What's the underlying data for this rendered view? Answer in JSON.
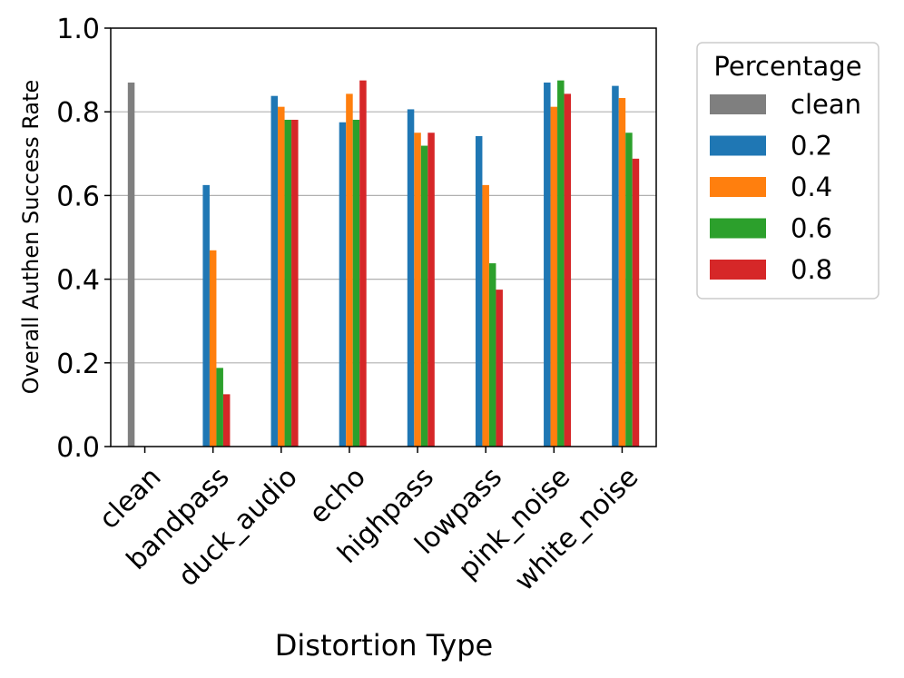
{
  "chart_data": {
    "type": "bar",
    "title": "",
    "xlabel": "Distortion Type",
    "ylabel": "Overall Authen Success Rate",
    "ylim": [
      0,
      1.0
    ],
    "yticks": [
      "0.0",
      "0.2",
      "0.4",
      "0.6",
      "0.8",
      "1.0"
    ],
    "ytick_values": [
      0.0,
      0.2,
      0.4,
      0.6,
      0.8,
      1.0
    ],
    "grid": "horizontal",
    "categories": [
      "clean",
      "bandpass",
      "duck_audio",
      "echo",
      "highpass",
      "lowpass",
      "pink_noise",
      "white_noise"
    ],
    "series": [
      {
        "name": "clean",
        "color": "#7f7f7f",
        "values": [
          0.87,
          null,
          null,
          null,
          null,
          null,
          null,
          null
        ]
      },
      {
        "name": "0.2",
        "color": "#1f77b4",
        "values": [
          null,
          0.625,
          0.838,
          0.775,
          0.806,
          0.742,
          0.87,
          0.862
        ]
      },
      {
        "name": "0.4",
        "color": "#ff7f0e",
        "values": [
          null,
          0.469,
          0.812,
          0.843,
          0.75,
          0.625,
          0.812,
          0.833
        ]
      },
      {
        "name": "0.6",
        "color": "#2ca02c",
        "values": [
          null,
          0.188,
          0.781,
          0.781,
          0.719,
          0.438,
          0.875,
          0.75
        ]
      },
      {
        "name": "0.8",
        "color": "#d62728",
        "values": [
          null,
          0.125,
          0.781,
          0.875,
          0.75,
          0.375,
          0.843,
          0.688
        ]
      }
    ],
    "legend": {
      "title": "Percentage",
      "placement": "outside-right-top"
    }
  }
}
